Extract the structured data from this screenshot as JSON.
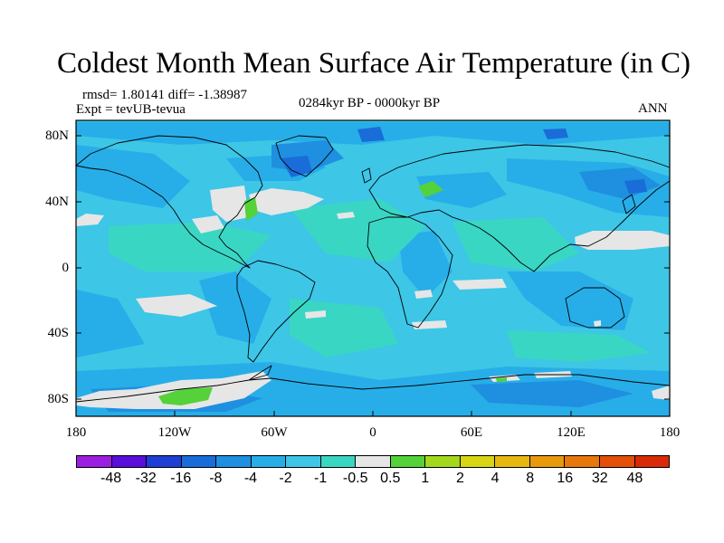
{
  "title": "Coldest Month Mean Surface Air Temperature (in C)",
  "stats": "rmsd= 1.80141 diff= -1.38987",
  "experiment": "Expt = tevUB-tevua",
  "period": "0284kyr BP - 0000kyr BP",
  "season": "ANN",
  "lat_ticks": [
    "80N",
    "40N",
    "0",
    "40S",
    "80S"
  ],
  "lon_ticks": [
    "180",
    "120W",
    "60W",
    "0",
    "60E",
    "120E",
    "180"
  ],
  "colorbar": {
    "colors": [
      "#9b1fe0",
      "#5a0ed9",
      "#1e3fd4",
      "#1a6cd8",
      "#1f8fe0",
      "#27aee8",
      "#3dc6e6",
      "#3ad6c4",
      "#e6e6e6",
      "#55d13a",
      "#a3d91c",
      "#d7d514",
      "#e6b810",
      "#e69a0c",
      "#e6780c",
      "#e4500a",
      "#d92a08"
    ],
    "labels": [
      "-48",
      "-32",
      "-16",
      "-8",
      "-4",
      "-2",
      "-1",
      "-0.5",
      "0.5",
      "1",
      "2",
      "4",
      "8",
      "16",
      "32",
      "48"
    ]
  },
  "map_colors": {
    "ocean_base": "#3dc6e6",
    "teal": "#3ad6c4",
    "blue": "#27aee8",
    "deep_blue": "#1f8fe0",
    "darkest": "#1a6cd8",
    "near_zero": "#e6e6e6",
    "positive": "#55d13a",
    "coast": "#000000"
  }
}
